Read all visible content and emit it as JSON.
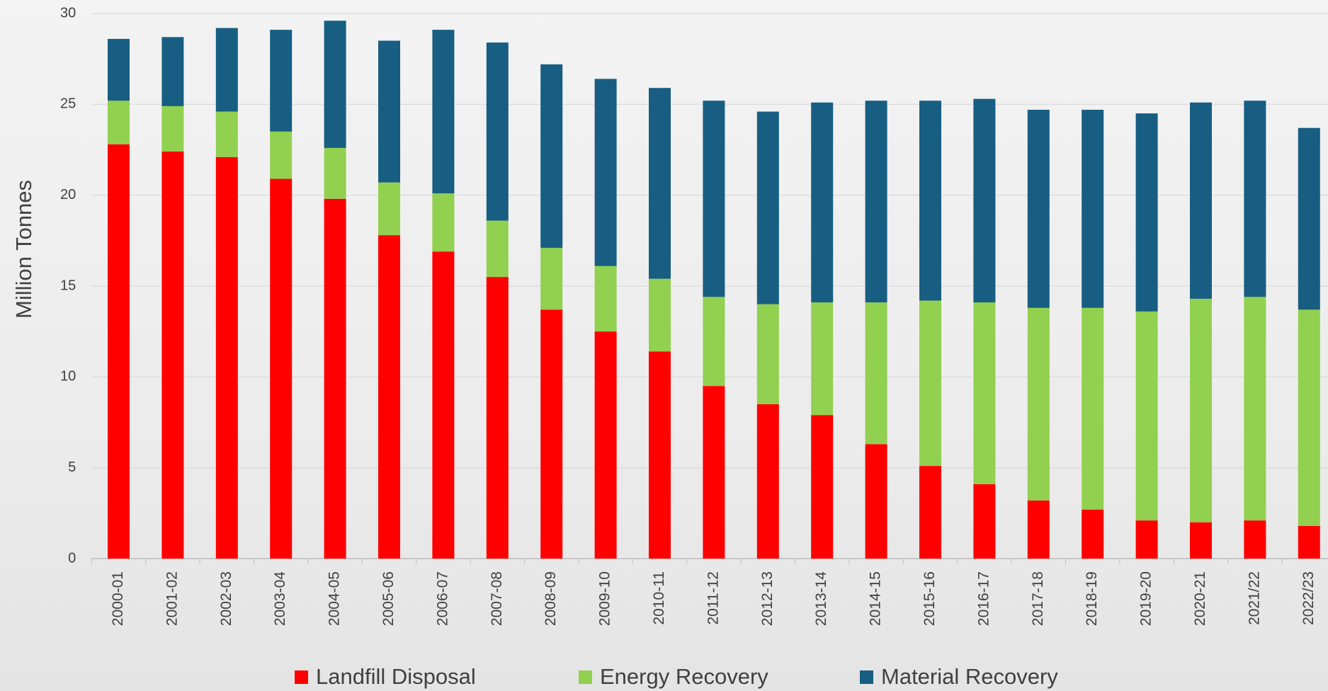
{
  "chart_data": {
    "type": "stacked_bar",
    "y_label": "Million Tonnes",
    "categories": [
      "2000-01",
      "2001-02",
      "2002-03",
      "2003-04",
      "2004-05",
      "2005-06",
      "2006-07",
      "2007-08",
      "2008-09",
      "2009-10",
      "2010-11",
      "2011-12",
      "2012-13",
      "2013-14",
      "2014-15",
      "2015-16",
      "2016-17",
      "2017-18",
      "2018-19",
      "2019-20",
      "2020-21",
      "2021/22",
      "2022/23"
    ],
    "series": [
      {
        "name": "Landfill Disposal",
        "color": "#ff0000",
        "values": [
          22.8,
          22.4,
          22.1,
          20.9,
          19.8,
          17.8,
          16.9,
          15.5,
          13.7,
          12.5,
          11.4,
          9.5,
          8.5,
          7.9,
          6.3,
          5.1,
          4.1,
          3.2,
          2.7,
          2.1,
          2.0,
          2.1,
          1.8
        ]
      },
      {
        "name": "Energy Recovery",
        "color": "#92d050",
        "values": [
          2.4,
          2.5,
          2.5,
          2.6,
          2.8,
          2.9,
          3.2,
          3.1,
          3.4,
          3.6,
          4.0,
          4.9,
          5.5,
          6.2,
          7.8,
          9.1,
          10.0,
          10.6,
          11.1,
          11.5,
          12.3,
          12.3,
          11.9
        ]
      },
      {
        "name": "Material Recovery",
        "color": "#175e82",
        "values": [
          3.4,
          3.8,
          4.6,
          5.6,
          7.0,
          7.8,
          9.0,
          9.8,
          10.1,
          10.3,
          10.5,
          10.8,
          10.6,
          11.0,
          11.1,
          11.0,
          11.2,
          10.9,
          10.9,
          10.9,
          10.8,
          10.8,
          10.0
        ]
      }
    ],
    "ylim": [
      0,
      30
    ],
    "yticks": [
      0,
      5,
      10,
      15,
      20,
      25,
      30
    ],
    "grid": true,
    "legend": "bottom"
  }
}
